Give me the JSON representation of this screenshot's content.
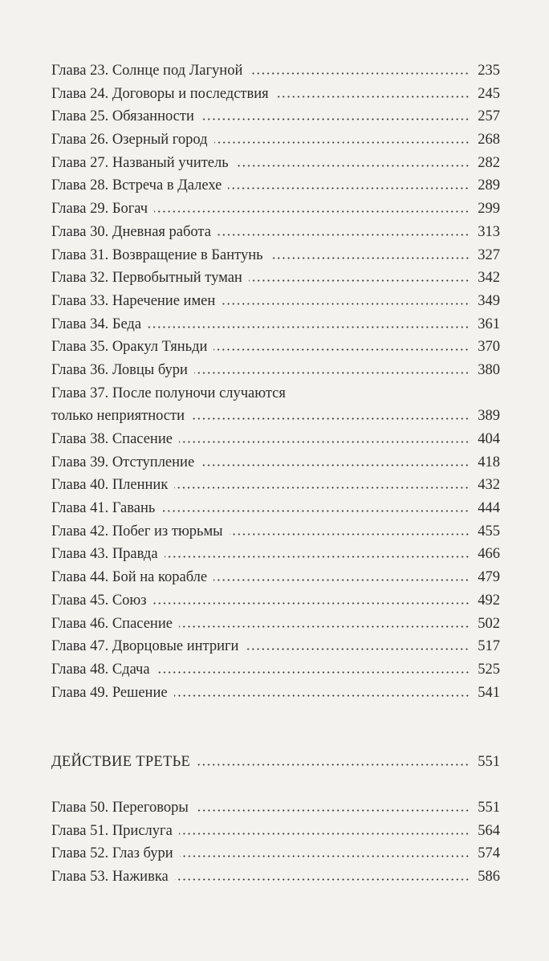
{
  "entries_main": [
    {
      "title": "Глава 23. Солнце под Лагуной",
      "page": "235"
    },
    {
      "title": "Глава 24. Договоры и последствия",
      "page": "245"
    },
    {
      "title": "Глава 25. Обязанности",
      "page": "257"
    },
    {
      "title": "Глава 26. Озерный город",
      "page": "268"
    },
    {
      "title": "Глава 27. Названый учитель",
      "page": "282"
    },
    {
      "title": "Глава 28. Встреча в Далехе",
      "page": "289"
    },
    {
      "title": "Глава 29. Богач",
      "page": "299"
    },
    {
      "title": "Глава 30. Дневная работа",
      "page": "313"
    },
    {
      "title": "Глава 31. Возвращение в Бантунь",
      "page": "327"
    },
    {
      "title": "Глава 32. Первобытный туман",
      "page": "342"
    },
    {
      "title": "Глава 33. Наречение имен",
      "page": "349"
    },
    {
      "title": "Глава 34. Беда",
      "page": "361"
    },
    {
      "title": "Глава 35. Оракул Тяньди",
      "page": "370"
    },
    {
      "title": "Глава 36. Ловцы бури",
      "page": "380"
    },
    {
      "title": "Глава 37. После полуночи случаются",
      "title_cont": "только неприятности",
      "page": "389"
    },
    {
      "title": "Глава 38. Спасение",
      "page": "404"
    },
    {
      "title": "Глава 39. Отступление",
      "page": "418"
    },
    {
      "title": "Глава 40. Пленник",
      "page": "432"
    },
    {
      "title": "Глава 41. Гавань",
      "page": "444"
    },
    {
      "title": "Глава 42. Побег из тюрьмы",
      "page": "455"
    },
    {
      "title": "Глава 43. Правда",
      "page": "466"
    },
    {
      "title": "Глава 44. Бой на корабле",
      "page": "479"
    },
    {
      "title": "Глава 45. Союз",
      "page": "492"
    },
    {
      "title": "Глава 46. Спасение",
      "page": "502"
    },
    {
      "title": "Глава 47. Дворцовые интриги",
      "page": "517"
    },
    {
      "title": "Глава 48. Сдача",
      "page": "525"
    },
    {
      "title": "Глава 49. Решение",
      "page": "541"
    }
  ],
  "part": {
    "title": "ДЕЙСТВИЕ ТРЕТЬЕ",
    "page": "551"
  },
  "entries_part3": [
    {
      "title": "Глава 50. Переговоры",
      "page": "551"
    },
    {
      "title": "Глава 51. Прислуга",
      "page": "564"
    },
    {
      "title": "Глава 52. Глаз бури",
      "page": "574"
    },
    {
      "title": "Глава 53. Наживка",
      "page": "586"
    }
  ]
}
